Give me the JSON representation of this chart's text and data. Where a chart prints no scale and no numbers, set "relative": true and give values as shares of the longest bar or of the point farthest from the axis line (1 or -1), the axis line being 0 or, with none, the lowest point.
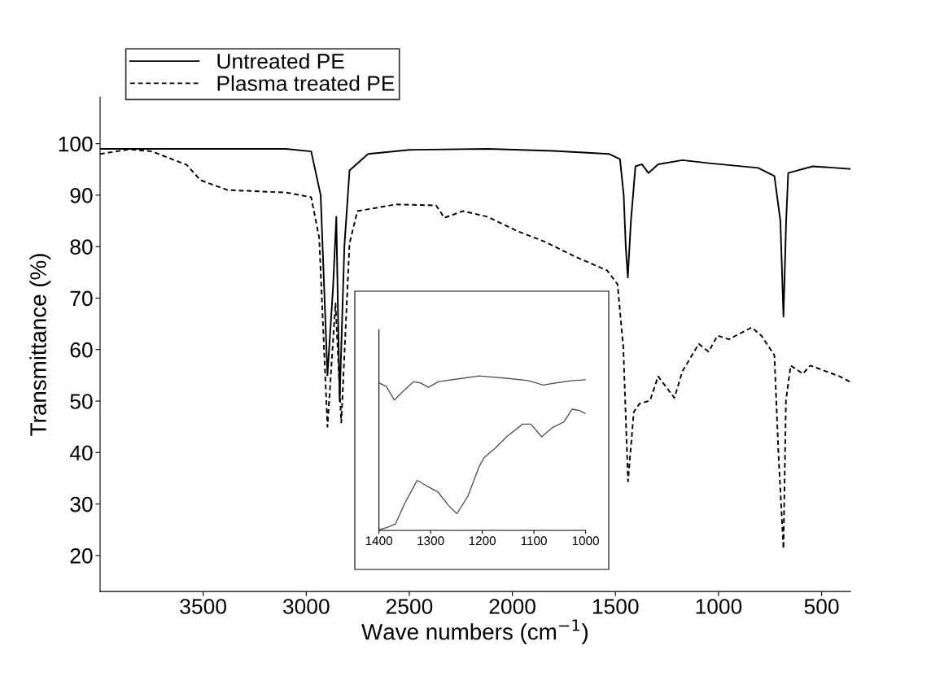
{
  "chart_data": [
    {
      "type": "line",
      "xlabel": "Wave numbers (cm$^{−1}$)",
      "ylabel": "Transmittance (%)",
      "xlim": [
        4000,
        360
      ],
      "ylim": [
        13,
        109
      ],
      "xticks": [
        3500,
        3000,
        2500,
        2000,
        1500,
        1000,
        500
      ],
      "yticks": [
        20,
        30,
        40,
        50,
        60,
        70,
        80,
        90,
        100
      ],
      "grid": false,
      "legend": "top left",
      "marker": "none",
      "series": [
        {
          "name": "Untreated PE",
          "color": "#000000",
          "line_style": "solid",
          "x": [
            4000,
            3500,
            3100,
            2976,
            2930,
            2897,
            2870,
            2854,
            2845,
            2838,
            2815,
            2790,
            2700,
            2500,
            2120,
            1800,
            1530,
            1478,
            1460,
            1450,
            1440,
            1425,
            1403,
            1372,
            1340,
            1293,
            1175,
            1045,
            808,
            729,
            700,
            685,
            672,
            662,
            543,
            360
          ],
          "values": [
            99,
            99,
            99,
            98.5,
            90,
            55,
            72,
            85.8,
            65,
            50,
            80,
            94.8,
            98,
            98.8,
            99,
            98.6,
            98,
            97,
            90,
            80,
            74,
            85,
            95.6,
            96,
            94.3,
            96,
            96.8,
            96.2,
            95.3,
            93.7,
            85,
            66.4,
            85,
            94.3,
            95.6,
            95.1
          ]
        },
        {
          "name": "Plasma treated PE",
          "color": "#000000",
          "line_style": "dashed",
          "x": [
            4000,
            3856,
            3749,
            3580,
            3513,
            3382,
            3095,
            2976,
            2937,
            2897,
            2858,
            2830,
            2790,
            2752,
            2566,
            2370,
            2330,
            2239,
            2120,
            1975,
            1845,
            1687,
            1541,
            1490,
            1462,
            1439,
            1411,
            1383,
            1332,
            1293,
            1214,
            1175,
            1096,
            1048,
            1005,
            950,
            839,
            792,
            729,
            709,
            685,
            673,
            650,
            591,
            555,
            413,
            360
          ],
          "values": [
            98,
            98.9,
            98.5,
            95.9,
            92.9,
            91,
            90.5,
            89.6,
            81.7,
            45,
            69,
            45.8,
            80.6,
            86.9,
            88.2,
            88,
            85.6,
            86.9,
            85.8,
            83,
            81,
            77.9,
            75.4,
            72.7,
            60.5,
            34.4,
            47.9,
            49.5,
            50.1,
            54.8,
            50.6,
            55.8,
            61.1,
            59.6,
            62.7,
            62,
            64.3,
            62.7,
            58.9,
            39.5,
            21.3,
            50.1,
            56.9,
            55.3,
            56.9,
            54.8,
            53.7
          ]
        }
      ]
    },
    {
      "type": "line",
      "relative": true,
      "xlim": [
        1400,
        1000
      ],
      "xticks": [
        1400,
        1300,
        1200,
        1100,
        1000
      ],
      "grid": false,
      "legend": false,
      "marker": "none",
      "series": [
        {
          "color": "#555555",
          "line_style": "solid",
          "x": [
            1400,
            1386,
            1370,
            1357,
            1333,
            1320,
            1304,
            1285,
            1238,
            1206,
            1153,
            1111,
            1082,
            1058,
            1026,
            1000
          ],
          "values": [
            0.955,
            0.933,
            0.844,
            0.889,
            0.963,
            0.955,
            0.926,
            0.963,
            0.985,
            1.0,
            0.985,
            0.97,
            0.941,
            0.955,
            0.97,
            0.975
          ]
        },
        {
          "color": "#555555",
          "line_style": "solid",
          "x": [
            1400,
            1384,
            1368,
            1350,
            1326,
            1307,
            1286,
            1265,
            1249,
            1228,
            1206,
            1196,
            1175,
            1153,
            1122,
            1106,
            1085,
            1064,
            1042,
            1026,
            1013,
            1000
          ],
          "values": [
            0.004,
            0.019,
            0.042,
            0.175,
            0.324,
            0.287,
            0.25,
            0.16,
            0.108,
            0.22,
            0.413,
            0.473,
            0.532,
            0.606,
            0.688,
            0.688,
            0.606,
            0.666,
            0.703,
            0.785,
            0.777,
            0.755
          ]
        }
      ]
    }
  ]
}
